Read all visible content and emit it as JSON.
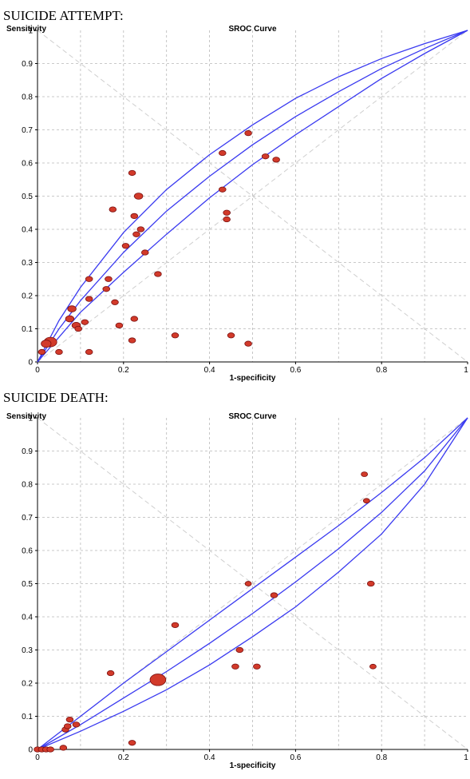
{
  "chart_data": [
    {
      "heading": "SUICIDE ATTEMPT:",
      "type": "scatter",
      "title": "SROC Curve",
      "xlabel": "1-specificity",
      "ylabel": "Sensitivity",
      "xlim": [
        0,
        1
      ],
      "ylim": [
        0,
        1
      ],
      "x_ticks": [
        "0",
        "0.2",
        "0.4",
        "0.6",
        "0.8",
        "1"
      ],
      "y_ticks": [
        "0",
        "0.1",
        "0.2",
        "0.3",
        "0.4",
        "0.5",
        "0.6",
        "0.7",
        "0.8",
        "0.9",
        "1"
      ],
      "grid": true,
      "colors": {
        "curve": "#3a3af0",
        "point_fill": "#d23a2a",
        "point_stroke": "#7a1010",
        "grid": "#b8b8b8",
        "diagonal": "#cfcfcf"
      },
      "curves": {
        "sroc": [
          [
            0,
            0
          ],
          [
            0.05,
            0.1
          ],
          [
            0.1,
            0.185
          ],
          [
            0.2,
            0.33
          ],
          [
            0.3,
            0.455
          ],
          [
            0.4,
            0.56
          ],
          [
            0.5,
            0.655
          ],
          [
            0.6,
            0.74
          ],
          [
            0.7,
            0.815
          ],
          [
            0.8,
            0.885
          ],
          [
            0.9,
            0.945
          ],
          [
            1,
            1
          ]
        ],
        "upper": [
          [
            0,
            0
          ],
          [
            0.05,
            0.125
          ],
          [
            0.1,
            0.225
          ],
          [
            0.2,
            0.39
          ],
          [
            0.3,
            0.52
          ],
          [
            0.4,
            0.625
          ],
          [
            0.5,
            0.715
          ],
          [
            0.6,
            0.795
          ],
          [
            0.7,
            0.86
          ],
          [
            0.8,
            0.915
          ],
          [
            0.9,
            0.96
          ],
          [
            1,
            1
          ]
        ],
        "lower": [
          [
            0,
            0
          ],
          [
            0.05,
            0.075
          ],
          [
            0.1,
            0.15
          ],
          [
            0.2,
            0.27
          ],
          [
            0.3,
            0.385
          ],
          [
            0.4,
            0.495
          ],
          [
            0.5,
            0.595
          ],
          [
            0.6,
            0.685
          ],
          [
            0.7,
            0.77
          ],
          [
            0.8,
            0.855
          ],
          [
            0.9,
            0.93
          ],
          [
            1,
            1
          ]
        ]
      },
      "points": [
        {
          "x": 0.03,
          "y": 0.06,
          "size": 3
        },
        {
          "x": 0.02,
          "y": 0.055,
          "size": 2
        },
        {
          "x": 0.01,
          "y": 0.03,
          "size": 1
        },
        {
          "x": 0.05,
          "y": 0.03,
          "size": 1
        },
        {
          "x": 0.075,
          "y": 0.13,
          "size": 1.5
        },
        {
          "x": 0.08,
          "y": 0.16,
          "size": 1.5
        },
        {
          "x": 0.09,
          "y": 0.11,
          "size": 1.5
        },
        {
          "x": 0.095,
          "y": 0.1,
          "size": 1
        },
        {
          "x": 0.11,
          "y": 0.12,
          "size": 1
        },
        {
          "x": 0.12,
          "y": 0.03,
          "size": 1
        },
        {
          "x": 0.12,
          "y": 0.25,
          "size": 1
        },
        {
          "x": 0.12,
          "y": 0.19,
          "size": 1
        },
        {
          "x": 0.16,
          "y": 0.22,
          "size": 1
        },
        {
          "x": 0.165,
          "y": 0.25,
          "size": 1
        },
        {
          "x": 0.175,
          "y": 0.46,
          "size": 1
        },
        {
          "x": 0.18,
          "y": 0.18,
          "size": 1
        },
        {
          "x": 0.19,
          "y": 0.11,
          "size": 1
        },
        {
          "x": 0.205,
          "y": 0.35,
          "size": 1
        },
        {
          "x": 0.22,
          "y": 0.57,
          "size": 1
        },
        {
          "x": 0.22,
          "y": 0.065,
          "size": 1
        },
        {
          "x": 0.225,
          "y": 0.13,
          "size": 1
        },
        {
          "x": 0.225,
          "y": 0.44,
          "size": 1
        },
        {
          "x": 0.23,
          "y": 0.385,
          "size": 1
        },
        {
          "x": 0.235,
          "y": 0.5,
          "size": 1.5
        },
        {
          "x": 0.24,
          "y": 0.4,
          "size": 1
        },
        {
          "x": 0.25,
          "y": 0.33,
          "size": 1
        },
        {
          "x": 0.28,
          "y": 0.265,
          "size": 1
        },
        {
          "x": 0.32,
          "y": 0.08,
          "size": 1
        },
        {
          "x": 0.43,
          "y": 0.63,
          "size": 1
        },
        {
          "x": 0.43,
          "y": 0.52,
          "size": 1
        },
        {
          "x": 0.44,
          "y": 0.45,
          "size": 1
        },
        {
          "x": 0.44,
          "y": 0.43,
          "size": 1
        },
        {
          "x": 0.45,
          "y": 0.08,
          "size": 1
        },
        {
          "x": 0.49,
          "y": 0.69,
          "size": 1
        },
        {
          "x": 0.49,
          "y": 0.055,
          "size": 1
        },
        {
          "x": 0.53,
          "y": 0.62,
          "size": 1
        },
        {
          "x": 0.555,
          "y": 0.61,
          "size": 1
        }
      ]
    },
    {
      "heading": "SUICIDE DEATH:",
      "type": "scatter",
      "title": "SROC Curve",
      "xlabel": "1-specificity",
      "ylabel": "Sensitivity",
      "xlim": [
        0,
        1
      ],
      "ylim": [
        0,
        1
      ],
      "x_ticks": [
        "0",
        "0.2",
        "0.4",
        "0.6",
        "0.8",
        "1"
      ],
      "y_ticks": [
        "0",
        "0.1",
        "0.2",
        "0.3",
        "0.4",
        "0.5",
        "0.6",
        "0.7",
        "0.8",
        "0.9",
        "1"
      ],
      "grid": true,
      "colors": {
        "curve": "#3a3af0",
        "point_fill": "#d23a2a",
        "point_stroke": "#7a1010",
        "grid": "#b8b8b8",
        "diagonal": "#cfcfcf"
      },
      "curves": {
        "sroc": [
          [
            0,
            0
          ],
          [
            0.1,
            0.075
          ],
          [
            0.2,
            0.155
          ],
          [
            0.3,
            0.235
          ],
          [
            0.4,
            0.32
          ],
          [
            0.5,
            0.41
          ],
          [
            0.6,
            0.505
          ],
          [
            0.7,
            0.605
          ],
          [
            0.8,
            0.715
          ],
          [
            0.9,
            0.84
          ],
          [
            1,
            1
          ]
        ],
        "upper": [
          [
            0,
            0
          ],
          [
            0.1,
            0.1
          ],
          [
            0.2,
            0.2
          ],
          [
            0.3,
            0.295
          ],
          [
            0.4,
            0.39
          ],
          [
            0.5,
            0.485
          ],
          [
            0.6,
            0.58
          ],
          [
            0.7,
            0.675
          ],
          [
            0.8,
            0.775
          ],
          [
            0.9,
            0.88
          ],
          [
            1,
            1
          ]
        ],
        "lower": [
          [
            0,
            0
          ],
          [
            0.1,
            0.055
          ],
          [
            0.2,
            0.115
          ],
          [
            0.3,
            0.18
          ],
          [
            0.4,
            0.255
          ],
          [
            0.5,
            0.34
          ],
          [
            0.6,
            0.43
          ],
          [
            0.7,
            0.535
          ],
          [
            0.8,
            0.65
          ],
          [
            0.9,
            0.8
          ],
          [
            1,
            1
          ]
        ]
      },
      "points": [
        {
          "x": 0.28,
          "y": 0.21,
          "size": 4
        },
        {
          "x": 0.0,
          "y": 0.0,
          "size": 1
        },
        {
          "x": 0.01,
          "y": 0.0,
          "size": 1
        },
        {
          "x": 0.02,
          "y": 0.0,
          "size": 1
        },
        {
          "x": 0.03,
          "y": 0.0,
          "size": 1
        },
        {
          "x": 0.06,
          "y": 0.005,
          "size": 1
        },
        {
          "x": 0.065,
          "y": 0.06,
          "size": 1
        },
        {
          "x": 0.07,
          "y": 0.07,
          "size": 1
        },
        {
          "x": 0.075,
          "y": 0.09,
          "size": 1
        },
        {
          "x": 0.09,
          "y": 0.075,
          "size": 1
        },
        {
          "x": 0.17,
          "y": 0.23,
          "size": 1
        },
        {
          "x": 0.22,
          "y": 0.02,
          "size": 1
        },
        {
          "x": 0.32,
          "y": 0.375,
          "size": 1
        },
        {
          "x": 0.46,
          "y": 0.25,
          "size": 1
        },
        {
          "x": 0.47,
          "y": 0.3,
          "size": 1
        },
        {
          "x": 0.49,
          "y": 0.5,
          "size": 0.8
        },
        {
          "x": 0.51,
          "y": 0.25,
          "size": 1
        },
        {
          "x": 0.55,
          "y": 0.465,
          "size": 1
        },
        {
          "x": 0.76,
          "y": 0.83,
          "size": 0.8
        },
        {
          "x": 0.765,
          "y": 0.75,
          "size": 0.8
        },
        {
          "x": 0.775,
          "y": 0.5,
          "size": 1
        },
        {
          "x": 0.78,
          "y": 0.25,
          "size": 0.8
        }
      ]
    }
  ]
}
